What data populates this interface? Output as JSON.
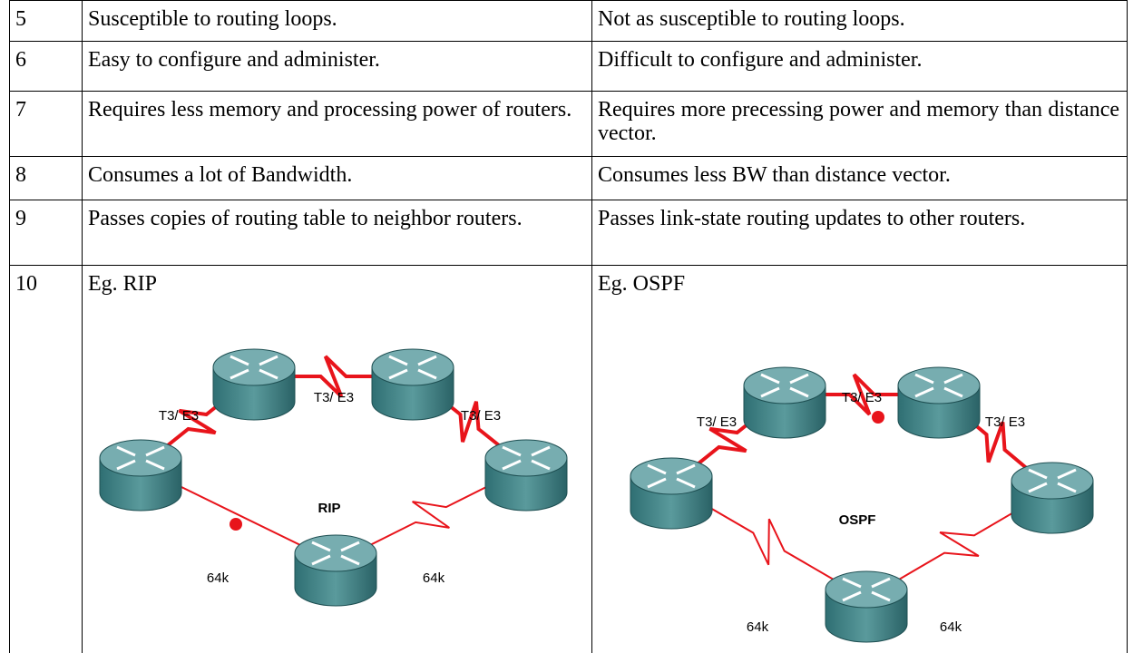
{
  "table": {
    "rows": [
      [
        "5",
        "Susceptible to routing loops.",
        "Not as susceptible to routing loops."
      ],
      [
        "6",
        "Easy to configure and administer.",
        "Difficult to configure and administer."
      ],
      [
        "7",
        "Requires less memory and processing power of routers.",
        "Requires more precessing power and memory than distance vector."
      ],
      [
        "8",
        "Consumes a lot of Bandwidth.",
        "Consumes less BW than distance vector."
      ],
      [
        "9",
        "Passes copies of routing table to neighbor routers.",
        "Passes link-state routing updates to other routers."
      ],
      [
        "10",
        "Eg. RIP",
        "Eg. OSPF"
      ]
    ]
  },
  "diagrams": [
    {
      "protocol": "RIP",
      "links": [
        "T3/ E3",
        "T3/ E3",
        "T3/ E3",
        "64k",
        "64k"
      ]
    },
    {
      "protocol": "OSPF",
      "links": [
        "T3/ E3",
        "T3/ E3",
        "T3/ E3",
        "64k",
        "64k"
      ]
    }
  ]
}
